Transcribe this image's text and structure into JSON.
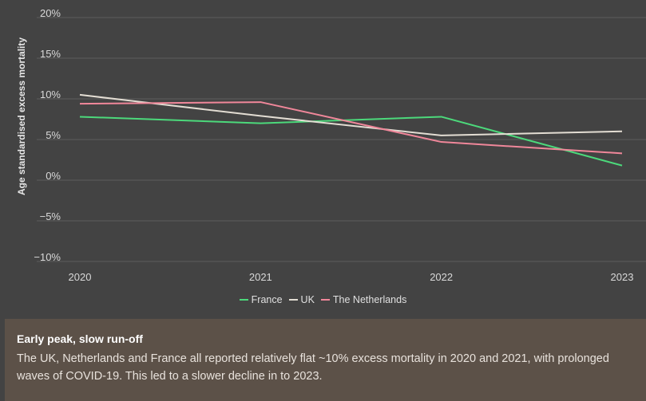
{
  "chart_data": {
    "type": "line",
    "xlabel": "",
    "ylabel": "Age standardised excess mortality",
    "categories": [
      "2020",
      "2021",
      "2022",
      "2023"
    ],
    "ylim": [
      -10,
      20
    ],
    "yticks": [
      20,
      15,
      10,
      5,
      0,
      -5,
      -10
    ],
    "ytick_labels": [
      "20%",
      "15%",
      "10%",
      "5%",
      "0%",
      "−5%",
      "−10%"
    ],
    "grid": true,
    "legend_position": "bottom",
    "series": [
      {
        "name": "France",
        "color": "#4cd97b",
        "values": [
          7.8,
          7.0,
          7.8,
          1.8
        ]
      },
      {
        "name": "UK",
        "color": "#e3ddd3",
        "values": [
          10.5,
          7.9,
          5.5,
          6.0
        ]
      },
      {
        "name": "The Netherlands",
        "color": "#f0879a",
        "values": [
          9.4,
          9.6,
          4.7,
          3.3
        ]
      }
    ]
  },
  "caption": {
    "title": "Early peak, slow run-off",
    "body": "The UK, Netherlands and France all reported relatively flat ~10% excess mortality in 2020 and 2021, with prolonged waves of COVID-19. This led to a slower decline in to 2023."
  },
  "colors": {
    "background": "#434343",
    "gridline": "#5e5e5e",
    "caption_background": "#5c5148"
  }
}
